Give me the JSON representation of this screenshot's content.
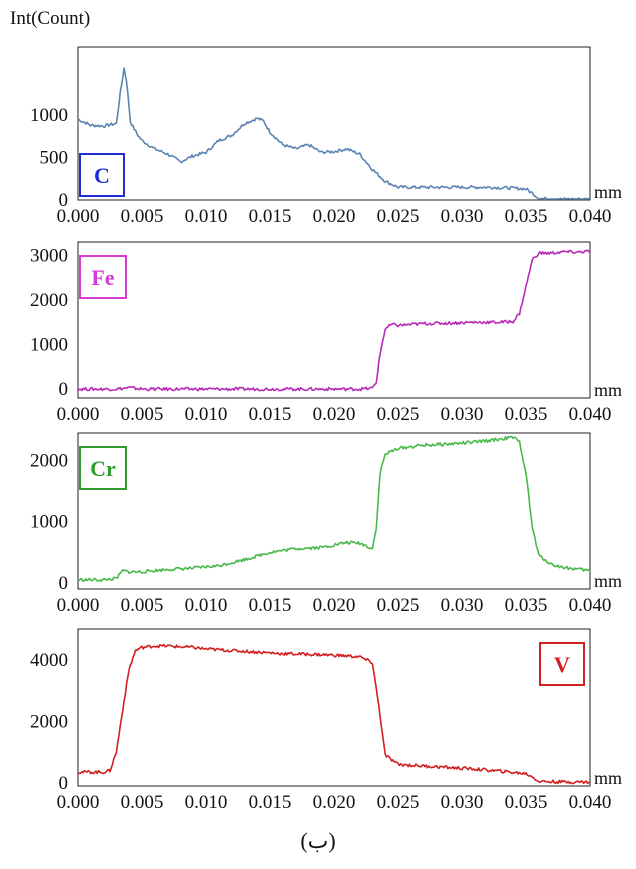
{
  "figure": {
    "ylabel": "Int(Count)",
    "caption": "(ب)",
    "unit": "mm"
  },
  "chart_data": [
    {
      "type": "line",
      "element": "C",
      "color": "#5b84b3",
      "badge_color": "#1f2ed1",
      "legend_position": "bottom-left",
      "x_ticks": [
        "0.000",
        "0.005",
        "0.010",
        "0.015",
        "0.020",
        "0.025",
        "0.030",
        "0.035",
        "0.040"
      ],
      "y_ticks": [
        0,
        500,
        1000
      ],
      "xlim": [
        0,
        0.04
      ],
      "ylim": [
        0,
        1800
      ],
      "x": [
        0.0,
        0.001,
        0.002,
        0.003,
        0.0033,
        0.0036,
        0.0038,
        0.0041,
        0.0046,
        0.005,
        0.006,
        0.007,
        0.008,
        0.009,
        0.01,
        0.011,
        0.012,
        0.013,
        0.014,
        0.0145,
        0.015,
        0.016,
        0.017,
        0.018,
        0.019,
        0.02,
        0.021,
        0.022,
        0.023,
        0.024,
        0.025,
        0.026,
        0.027,
        0.028,
        0.03,
        0.032,
        0.034,
        0.035,
        0.0355,
        0.036,
        0.037,
        0.038,
        0.04
      ],
      "y": [
        950,
        880,
        870,
        900,
        1250,
        1550,
        1400,
        920,
        780,
        700,
        600,
        540,
        450,
        520,
        560,
        700,
        760,
        900,
        960,
        930,
        800,
        650,
        600,
        650,
        560,
        570,
        600,
        540,
        360,
        220,
        150,
        150,
        150,
        150,
        150,
        150,
        140,
        130,
        80,
        20,
        10,
        10,
        10
      ]
    },
    {
      "type": "line",
      "element": "Fe",
      "color": "#b82ab8",
      "badge_color": "#d43cd4",
      "legend_position": "top-left",
      "x_ticks": [
        "0.000",
        "0.005",
        "0.010",
        "0.015",
        "0.020",
        "0.025",
        "0.030",
        "0.035",
        "0.040"
      ],
      "y_ticks": [
        0,
        1000,
        2000,
        3000
      ],
      "xlim": [
        0,
        0.04
      ],
      "ylim": [
        -200,
        3300
      ],
      "x": [
        0.0,
        0.003,
        0.004,
        0.005,
        0.01,
        0.015,
        0.02,
        0.022,
        0.023,
        0.0233,
        0.0236,
        0.024,
        0.0245,
        0.025,
        0.027,
        0.029,
        0.031,
        0.033,
        0.034,
        0.0345,
        0.035,
        0.0355,
        0.036,
        0.037,
        0.038,
        0.039,
        0.04
      ],
      "y": [
        0,
        0,
        30,
        0,
        0,
        0,
        0,
        0,
        20,
        150,
        800,
        1350,
        1450,
        1430,
        1470,
        1480,
        1500,
        1500,
        1520,
        1700,
        2300,
        2900,
        3050,
        3050,
        3080,
        3070,
        3100
      ]
    },
    {
      "type": "line",
      "element": "Cr",
      "color": "#4ab84a",
      "badge_color": "#2e9e2e",
      "legend_position": "top-left",
      "x_ticks": [
        "0.000",
        "0.005",
        "0.010",
        "0.015",
        "0.020",
        "0.025",
        "0.030",
        "0.035",
        "0.040"
      ],
      "y_ticks": [
        0,
        1000,
        2000
      ],
      "xlim": [
        0,
        0.04
      ],
      "ylim": [
        -100,
        2450
      ],
      "x": [
        0.0,
        0.002,
        0.003,
        0.0035,
        0.004,
        0.005,
        0.007,
        0.009,
        0.011,
        0.013,
        0.015,
        0.017,
        0.019,
        0.021,
        0.022,
        0.023,
        0.0233,
        0.0236,
        0.024,
        0.025,
        0.027,
        0.029,
        0.031,
        0.033,
        0.034,
        0.0345,
        0.035,
        0.0355,
        0.036,
        0.037,
        0.038,
        0.04
      ],
      "y": [
        50,
        50,
        70,
        200,
        180,
        180,
        220,
        240,
        280,
        380,
        500,
        560,
        580,
        660,
        650,
        560,
        900,
        1800,
        2100,
        2200,
        2250,
        2270,
        2300,
        2350,
        2380,
        2300,
        1800,
        900,
        450,
        300,
        250,
        200
      ]
    },
    {
      "type": "line",
      "element": "V",
      "color": "#d21f1f",
      "badge_color": "#d21f1f",
      "legend_position": "top-right",
      "x_ticks": [
        "0.000",
        "0.005",
        "0.010",
        "0.015",
        "0.020",
        "0.025",
        "0.030",
        "0.035",
        "0.040"
      ],
      "y_ticks": [
        0,
        2000,
        4000
      ],
      "xlim": [
        0,
        0.04
      ],
      "ylim": [
        -100,
        5000
      ],
      "x": [
        0.0,
        0.002,
        0.0025,
        0.003,
        0.0035,
        0.004,
        0.0045,
        0.005,
        0.006,
        0.007,
        0.008,
        0.009,
        0.01,
        0.012,
        0.014,
        0.016,
        0.018,
        0.02,
        0.022,
        0.023,
        0.0235,
        0.024,
        0.025,
        0.027,
        0.029,
        0.031,
        0.033,
        0.035,
        0.0355,
        0.036,
        0.038,
        0.04
      ],
      "y": [
        350,
        350,
        400,
        1000,
        2400,
        3700,
        4300,
        4400,
        4450,
        4450,
        4420,
        4400,
        4350,
        4300,
        4250,
        4200,
        4180,
        4150,
        4100,
        3900,
        2500,
        900,
        600,
        550,
        500,
        450,
        380,
        300,
        200,
        50,
        30,
        30
      ]
    }
  ]
}
